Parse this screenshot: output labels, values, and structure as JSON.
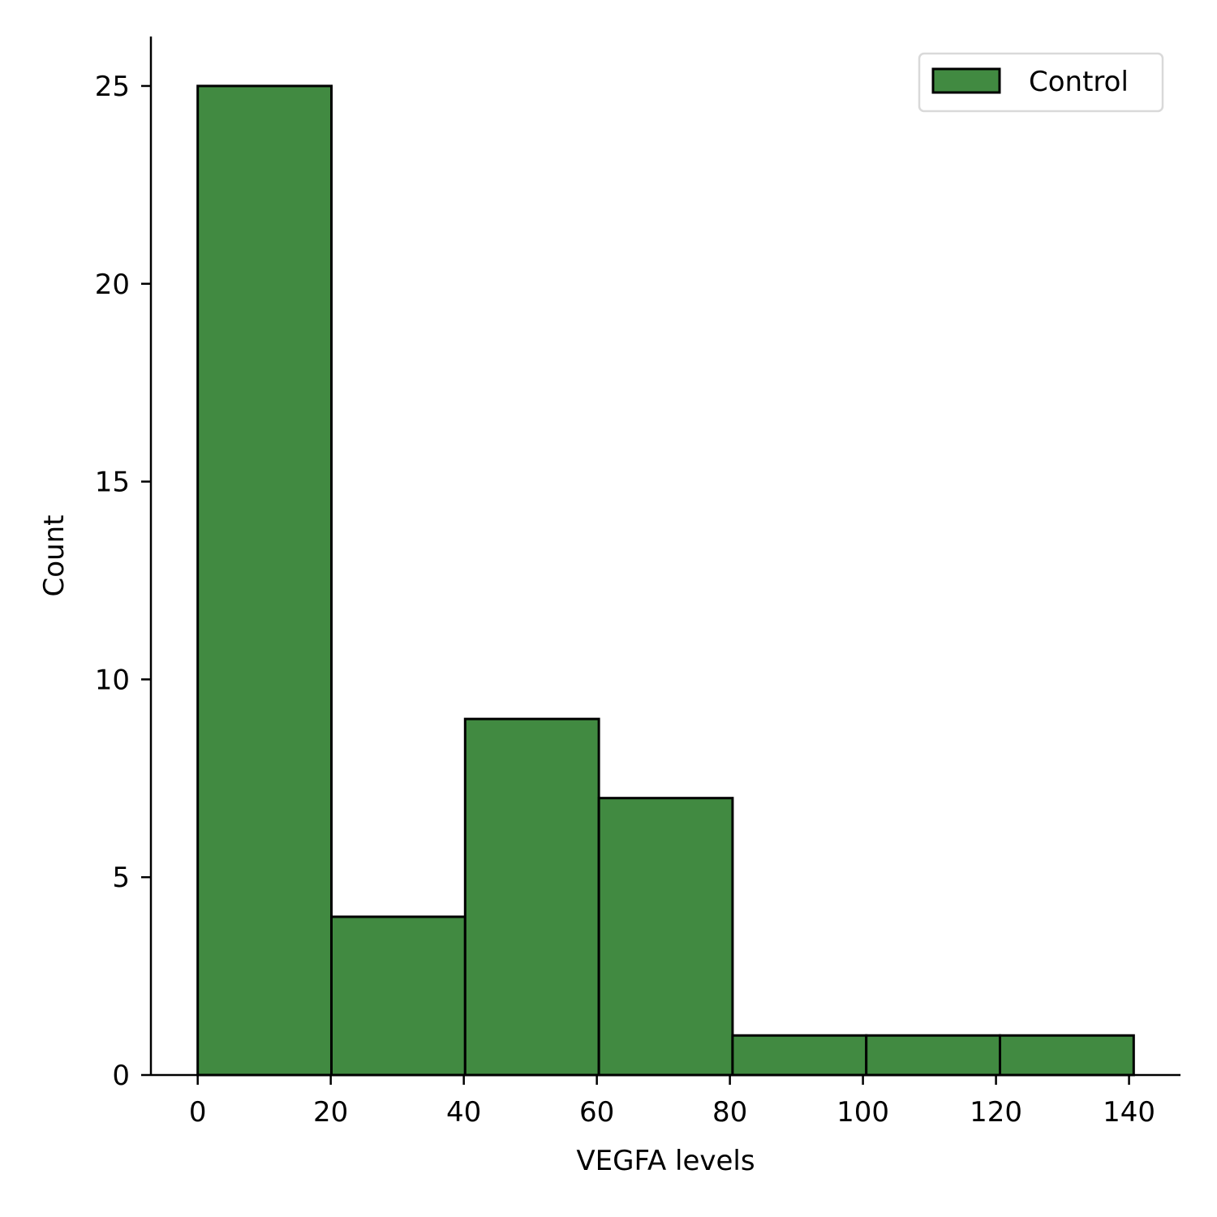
{
  "chart_data": {
    "type": "bar",
    "bins": [
      {
        "start": 0,
        "end": 20.1,
        "count": 25
      },
      {
        "start": 20.1,
        "end": 40.2,
        "count": 4
      },
      {
        "start": 40.2,
        "end": 60.3,
        "count": 9
      },
      {
        "start": 60.3,
        "end": 80.4,
        "count": 7
      },
      {
        "start": 80.4,
        "end": 100.5,
        "count": 1
      },
      {
        "start": 100.5,
        "end": 120.6,
        "count": 1
      },
      {
        "start": 120.6,
        "end": 140.7,
        "count": 1
      }
    ],
    "xlabel": "VEGFA levels",
    "ylabel": "Count",
    "xlim": [
      -7.035,
      147.735
    ],
    "ylim": [
      0,
      26.25
    ],
    "xticks": [
      0,
      20,
      40,
      60,
      80,
      100,
      120,
      140
    ],
    "xtick_labels": [
      "0",
      "20",
      "40",
      "60",
      "80",
      "100",
      "120",
      "140"
    ],
    "yticks": [
      0,
      5,
      10,
      15,
      20,
      25
    ],
    "ytick_labels": [
      "0",
      "5",
      "10",
      "15",
      "20",
      "25"
    ],
    "grid": false,
    "legend_position": "top-right",
    "series": [
      {
        "name": "Control",
        "color": "#418a41",
        "edge_color": "#000000"
      }
    ]
  }
}
